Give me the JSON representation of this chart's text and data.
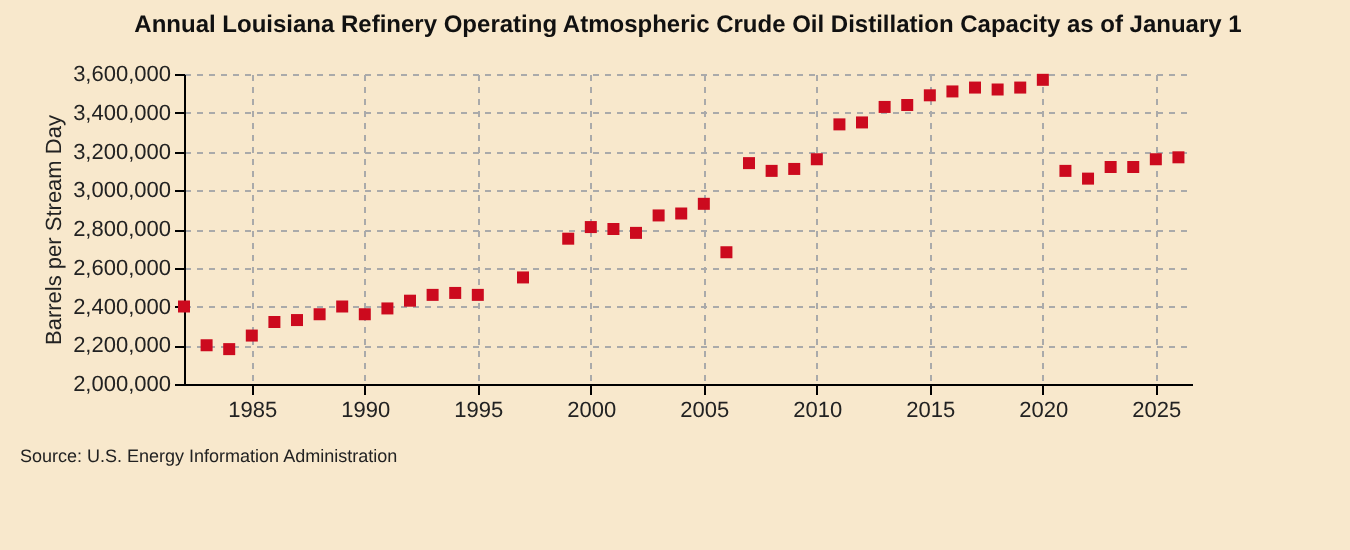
{
  "chart_data": {
    "type": "scatter",
    "title": "Annual Louisiana Refinery Operating Atmospheric Crude Oil Distillation Capacity as of January 1",
    "ylabel": "Barrels per Stream Day",
    "annotations": [
      "Source: U.S. Energy Information Administration"
    ],
    "x": [
      1982,
      1983,
      1984,
      1985,
      1986,
      1987,
      1988,
      1989,
      1990,
      1991,
      1992,
      1993,
      1994,
      1995,
      1997,
      1999,
      2000,
      2001,
      2002,
      2003,
      2004,
      2005,
      2006,
      2007,
      2008,
      2009,
      2010,
      2011,
      2012,
      2013,
      2014,
      2015,
      2016,
      2017,
      2018,
      2019,
      2020,
      2021,
      2022,
      2023,
      2024,
      2025,
      2026
    ],
    "series": [
      {
        "color": "#cc0a1e",
        "values": [
          2400000,
          2200000,
          2180000,
          2250000,
          2320000,
          2330000,
          2360000,
          2400000,
          2360000,
          2390000,
          2430000,
          2460000,
          2470000,
          2460000,
          2550000,
          2750000,
          2810000,
          2800000,
          2780000,
          2870000,
          2880000,
          2930000,
          2680000,
          3140000,
          3100000,
          3110000,
          3160000,
          3340000,
          3350000,
          3430000,
          3440000,
          3490000,
          3510000,
          3530000,
          3520000,
          3530000,
          3570000,
          3100000,
          3060000,
          3120000,
          3120000,
          3160000,
          3170000
        ]
      }
    ],
    "xlim": [
      1982,
      2026.6
    ],
    "xticks": [
      1985,
      1990,
      1995,
      2000,
      2005,
      2010,
      2015,
      2020,
      2025
    ],
    "ylim": [
      2000000,
      3600000
    ],
    "yticks": [
      {
        "value": 2000000,
        "label": "2,000,000"
      },
      {
        "value": 2200000,
        "label": "2,200,000"
      },
      {
        "value": 2400000,
        "label": "2,400,000"
      },
      {
        "value": 2600000,
        "label": "2,600,000"
      },
      {
        "value": 2800000,
        "label": "2,800,000"
      },
      {
        "value": 3000000,
        "label": "3,000,000"
      },
      {
        "value": 3200000,
        "label": "3,200,000"
      },
      {
        "value": 3400000,
        "label": "3,400,000"
      },
      {
        "value": 3600000,
        "label": "3,600,000"
      }
    ],
    "grid": true,
    "marker": "square"
  }
}
